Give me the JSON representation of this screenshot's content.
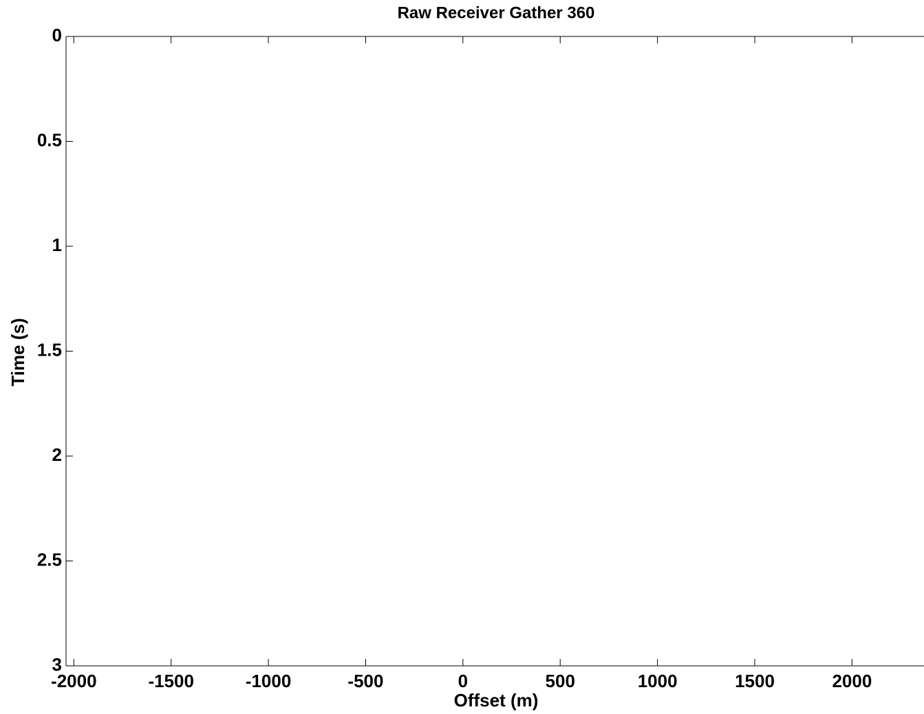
{
  "chart_data": {
    "type": "image",
    "title": "Raw Receiver Gather 360",
    "x_label": "Offset (m)",
    "y_label": "Time (s)",
    "xlim": [
      -2040,
      2370
    ],
    "ylim": [
      0,
      3
    ],
    "y_reversed": true,
    "xticks": [
      -2000,
      -1500,
      -1000,
      -500,
      0,
      500,
      1000,
      1500,
      2000
    ],
    "yticks": [
      0,
      0.5,
      1,
      1.5,
      2,
      2.5,
      3
    ]
  }
}
